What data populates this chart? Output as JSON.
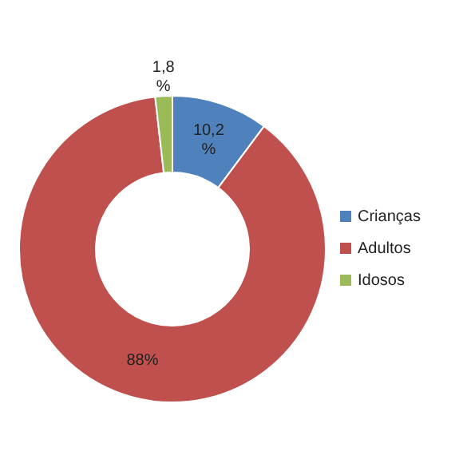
{
  "chart_data": {
    "type": "donut",
    "categories": [
      "Crianças",
      "Adultos",
      "Idosos"
    ],
    "values": [
      10.2,
      88,
      1.8
    ],
    "colors": [
      "#4f81bd",
      "#c0504d",
      "#9bbb59"
    ],
    "value_labels": [
      "10,2 %",
      "88%",
      "1,8 %"
    ],
    "legend": "right"
  }
}
